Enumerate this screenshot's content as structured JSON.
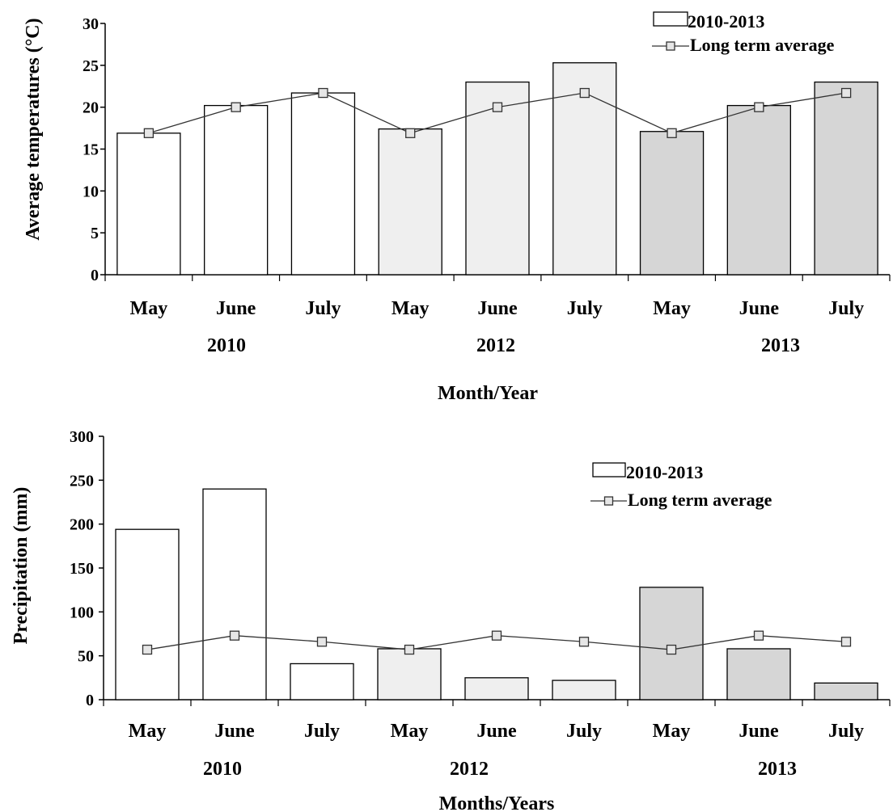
{
  "chart_data": [
    {
      "type": "bar",
      "ylabel": "Average temperatures (°C)",
      "xlabel": "Month/Year",
      "ylim": [
        0,
        30
      ],
      "yticks": [
        0,
        5,
        10,
        15,
        20,
        25,
        30
      ],
      "categories": [
        "May",
        "June",
        "July",
        "May",
        "June",
        "July",
        "May",
        "June",
        "July"
      ],
      "groups": [
        "2010",
        "2012",
        "2013"
      ],
      "group_colors": [
        "#ffffff",
        "#efefef",
        "#d6d6d6"
      ],
      "legend_position": "top-right",
      "series": [
        {
          "name": "2010-2013",
          "type": "bar",
          "values": [
            16.9,
            20.2,
            21.7,
            17.4,
            23.0,
            25.3,
            17.1,
            20.2,
            23.0
          ]
        },
        {
          "name": "Long term average",
          "type": "line",
          "values": [
            16.9,
            20.0,
            21.7,
            16.9,
            20.0,
            21.7,
            16.9,
            20.0,
            21.7
          ]
        }
      ]
    },
    {
      "type": "bar",
      "ylabel": "Precipitation (mm)",
      "xlabel": "Months/Years",
      "ylim": [
        0,
        300
      ],
      "yticks": [
        0,
        50,
        100,
        150,
        200,
        250,
        300
      ],
      "categories": [
        "May",
        "June",
        "July",
        "May",
        "June",
        "July",
        "May",
        "June",
        "July"
      ],
      "groups": [
        "2010",
        "2012",
        "2013"
      ],
      "group_colors": [
        "#ffffff",
        "#efefef",
        "#d6d6d6"
      ],
      "legend_position": "top-right",
      "series": [
        {
          "name": "2010-2013",
          "type": "bar",
          "values": [
            194,
            240,
            41,
            58,
            25,
            22,
            128,
            58,
            19
          ]
        },
        {
          "name": "Long term average",
          "type": "line",
          "values": [
            57,
            73,
            66,
            57,
            73,
            66,
            57,
            73,
            66
          ]
        }
      ]
    }
  ]
}
